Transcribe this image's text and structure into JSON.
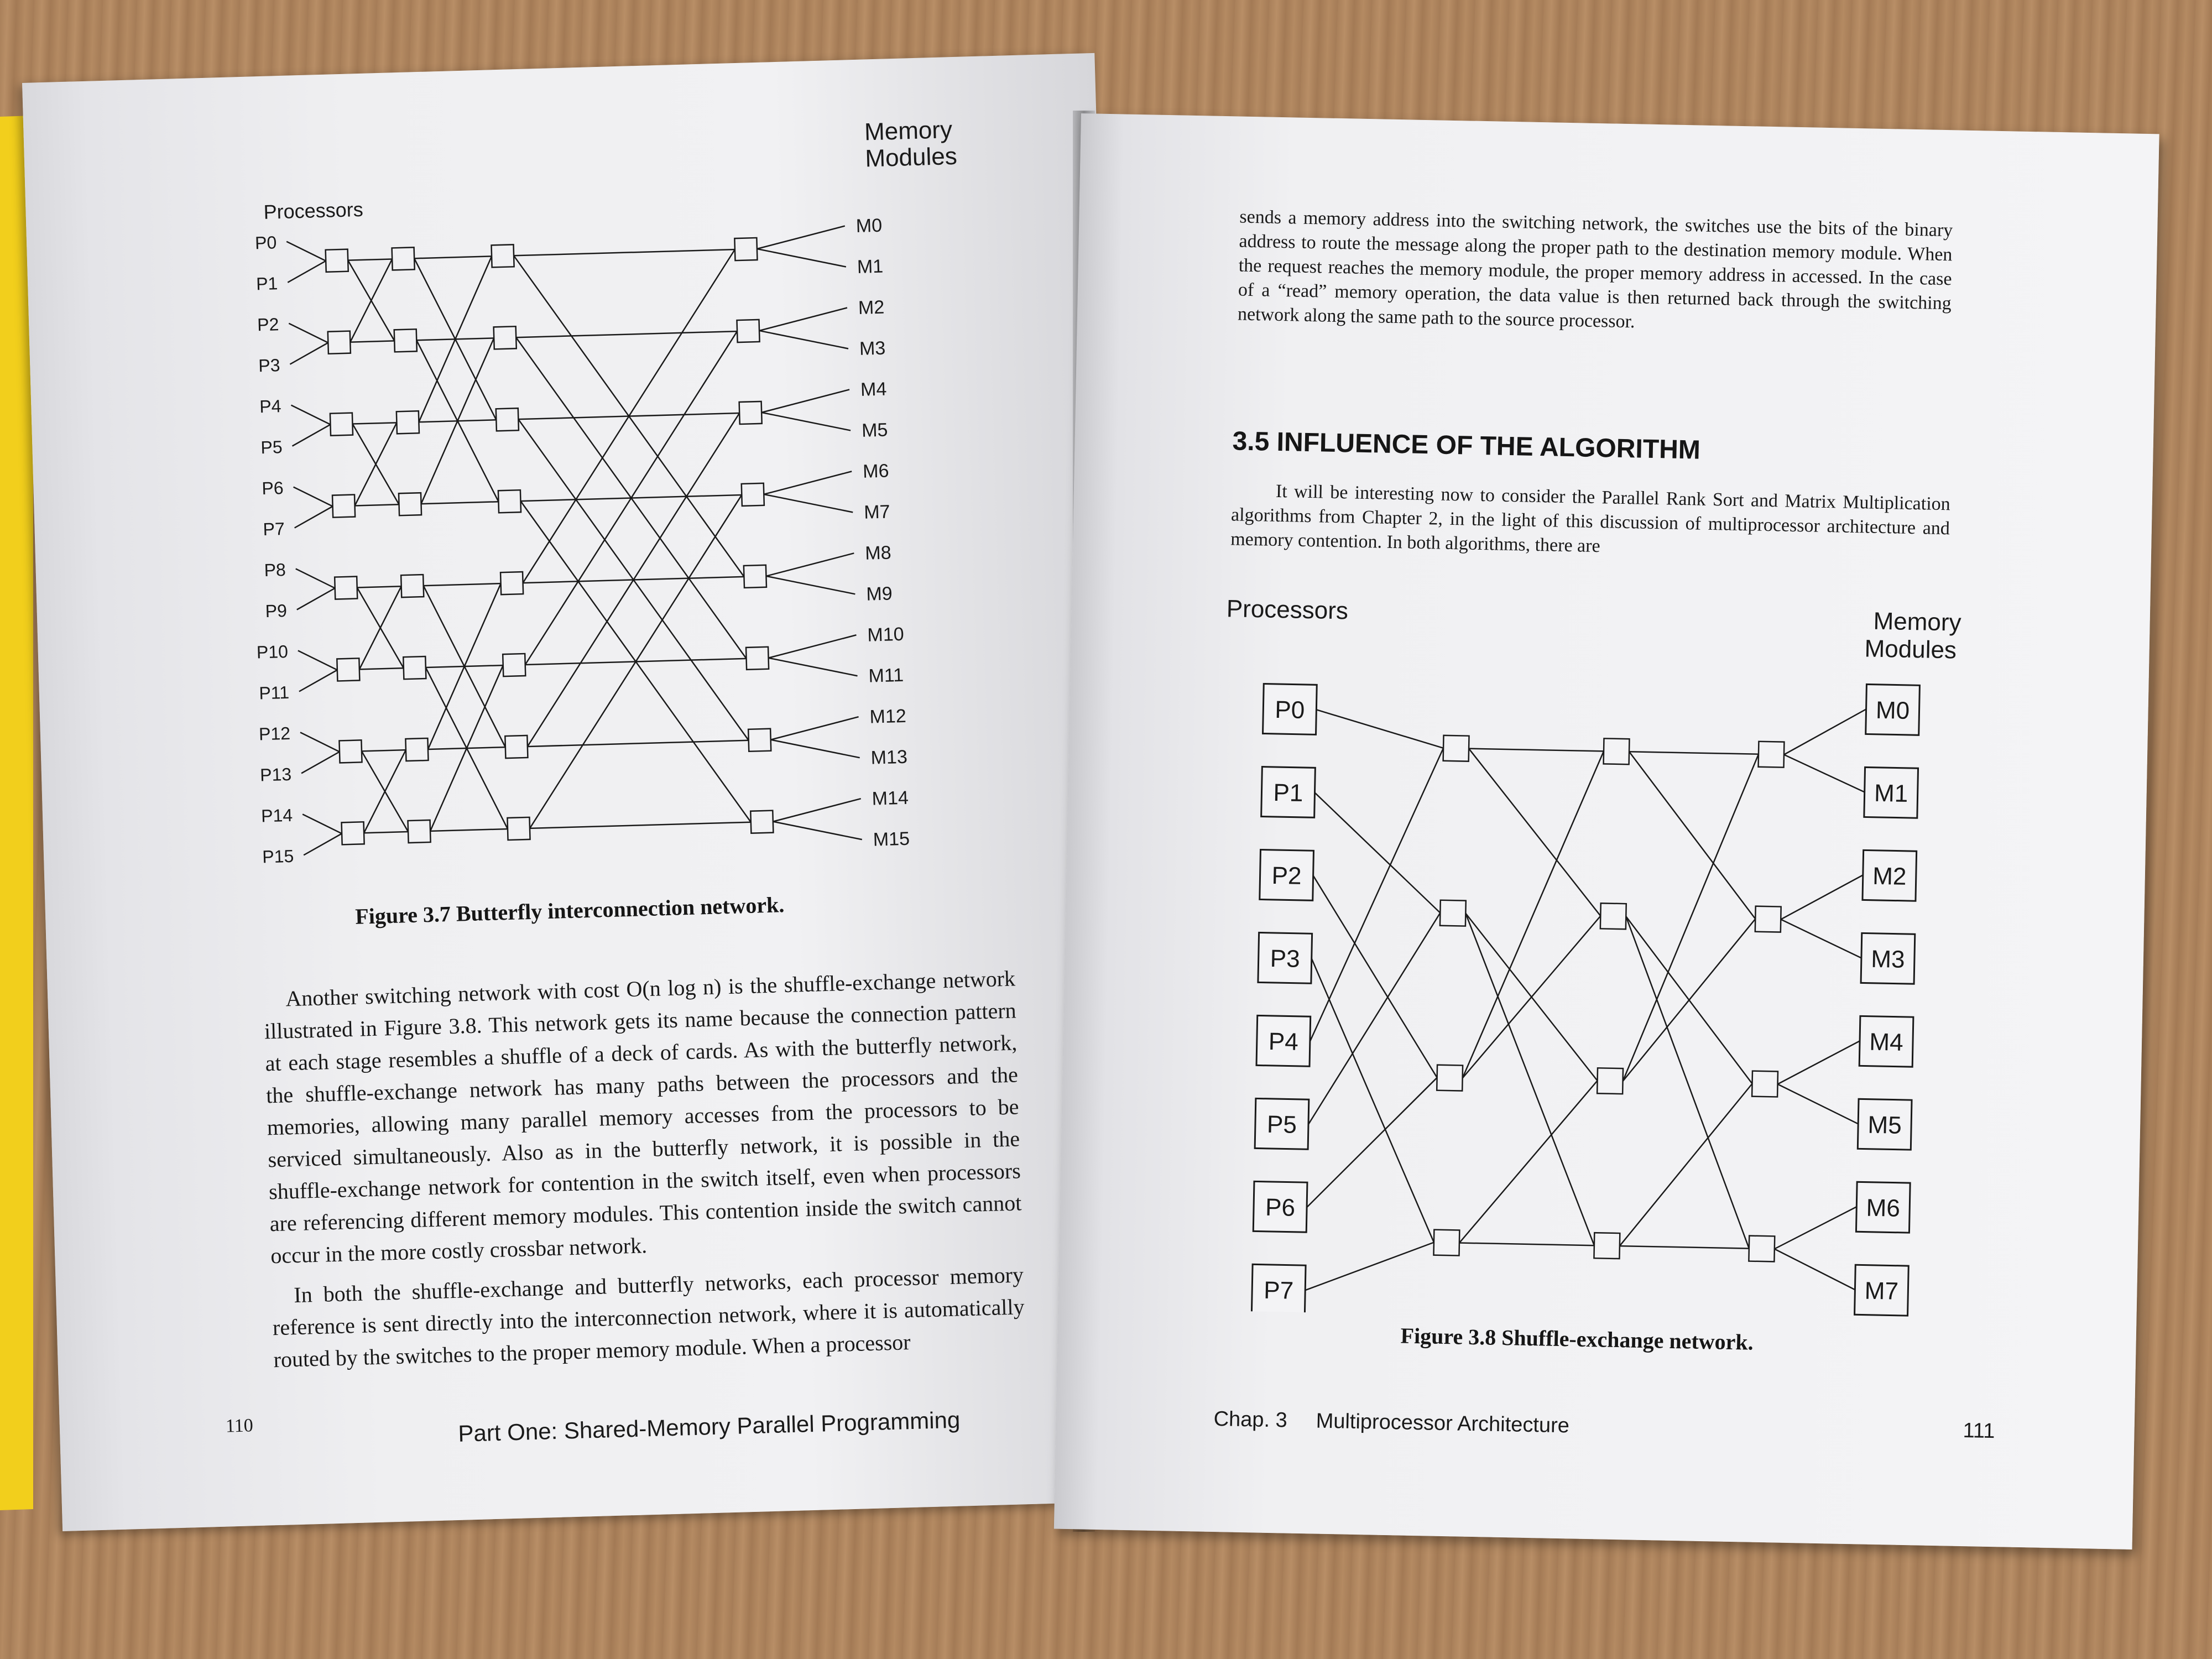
{
  "left_page": {
    "figure": {
      "processors_label": "Processors",
      "memory_label_line1": "Memory",
      "memory_label_line2": "Modules",
      "processors": [
        "P0",
        "P1",
        "P2",
        "P3",
        "P4",
        "P5",
        "P6",
        "P7",
        "P8",
        "P9",
        "P10",
        "P11",
        "P12",
        "P13",
        "P14",
        "P15"
      ],
      "memories": [
        "M0",
        "M1",
        "M2",
        "M3",
        "M4",
        "M5",
        "M6",
        "M7",
        "M8",
        "M9",
        "M10",
        "M11",
        "M12",
        "M13",
        "M14",
        "M15"
      ],
      "caption": "Figure 3.7  Butterfly interconnection network."
    },
    "paragraphs": [
      "Another switching network with cost O(n log n) is the shuffle-exchange network illustrated in Figure 3.8. This network gets its name because the connection pattern at each stage resembles a shuffle of a deck of cards. As with the butterfly network, the shuffle-exchange network has many paths between the processors and the memories, allowing many parallel memory accesses from the processors to be serviced simultaneously. Also as in the butterfly network, it is possible in the shuffle-exchange network for contention in the switch itself, even when processors are referencing different memory modules. This contention inside the switch cannot occur in the more costly crossbar network.",
      "In both the shuffle-exchange and butterfly networks, each processor memory reference is sent directly into the interconnection network, where it is automatically routed by the switches to the proper memory module. When a processor"
    ],
    "page_number": "110",
    "running_footer": "Part One:  Shared-Memory Parallel Programming"
  },
  "right_page": {
    "top_paragraph": "sends a memory address into the switching network, the switches use the bits of the binary address to route the message along the proper path to the destination memory module. When the request reaches the memory module, the proper memory address in accessed. In the case of a “read” memory operation, the data value is then returned back through the switching network along the same path to the source processor.",
    "section_heading": "3.5  INFLUENCE OF THE ALGORITHM",
    "section_paragraph": "It will be interesting now to consider the Parallel Rank Sort and Matrix Multiplication algorithms from Chapter 2, in the light of this discussion of multiprocessor architecture and memory contention. In both algorithms, there are",
    "figure": {
      "processors_label": "Processors",
      "memory_label_line1": "Memory",
      "memory_label_line2": "Modules",
      "processors": [
        "P0",
        "P1",
        "P2",
        "P3",
        "P4",
        "P5",
        "P6",
        "P7"
      ],
      "memories": [
        "M0",
        "M1",
        "M2",
        "M3",
        "M4",
        "M5",
        "M6",
        "M7"
      ],
      "caption": "Figure 3.8  Shuffle-exchange network."
    },
    "footer_chapter": "Chap. 3",
    "footer_title": "Multiprocessor Architecture",
    "page_number": "111"
  }
}
